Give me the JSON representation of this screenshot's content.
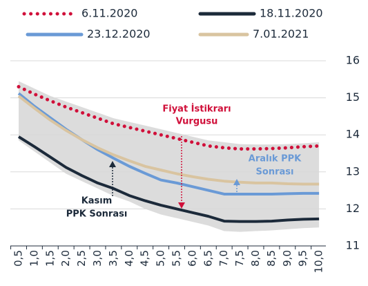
{
  "chart_data": {
    "type": "line",
    "categories": [
      "0,5",
      "1,0",
      "1,5",
      "2,0",
      "2,5",
      "3,0",
      "3,5",
      "4,0",
      "4,5",
      "5,0",
      "5,5",
      "6,0",
      "6,5",
      "7,0",
      "7,5",
      "8,0",
      "8,5",
      "9,0",
      "9,5",
      "10,0"
    ],
    "series": [
      {
        "name": "6.11.2020",
        "color": "#d0103a",
        "style": "dotted",
        "values": [
          15.3,
          15.1,
          14.92,
          14.75,
          14.6,
          14.45,
          14.3,
          14.2,
          14.1,
          14.0,
          13.9,
          13.8,
          13.7,
          13.65,
          13.62,
          13.62,
          13.63,
          13.65,
          13.68,
          13.7
        ]
      },
      {
        "name": "18.11.2020",
        "color": "#1c2a3a",
        "style": "solid",
        "values": [
          13.95,
          13.68,
          13.4,
          13.12,
          12.9,
          12.7,
          12.55,
          12.36,
          12.22,
          12.1,
          12.0,
          11.9,
          11.8,
          11.67,
          11.66,
          11.66,
          11.67,
          11.7,
          11.72,
          11.73
        ]
      },
      {
        "name": "23.12.2020",
        "color": "#6a9ad6",
        "style": "solid",
        "values": [
          15.12,
          14.77,
          14.46,
          14.15,
          13.87,
          13.6,
          13.37,
          13.15,
          12.96,
          12.78,
          12.7,
          12.6,
          12.5,
          12.4,
          12.4,
          12.4,
          12.4,
          12.41,
          12.42,
          12.42
        ]
      },
      {
        "name": "7.01.2021",
        "color": "#d9c4a0",
        "style": "solid",
        "values": [
          15.05,
          14.72,
          14.4,
          14.12,
          13.87,
          13.65,
          13.46,
          13.3,
          13.15,
          13.05,
          12.95,
          12.87,
          12.8,
          12.75,
          12.72,
          12.7,
          12.7,
          12.68,
          12.67,
          12.67
        ]
      }
    ],
    "band": {
      "color": "#dcdcdc",
      "upper": [
        15.45,
        15.25,
        15.05,
        14.9,
        14.75,
        14.6,
        14.45,
        14.35,
        14.25,
        14.15,
        14.05,
        13.95,
        13.85,
        13.8,
        13.75,
        13.74,
        13.74,
        13.75,
        13.77,
        13.8
      ],
      "lower": [
        13.85,
        13.55,
        13.25,
        12.95,
        12.75,
        12.55,
        12.35,
        12.2,
        12.0,
        11.85,
        11.75,
        11.65,
        11.55,
        11.4,
        11.38,
        11.4,
        11.42,
        11.45,
        11.48,
        11.5
      ]
    },
    "ylim": [
      11,
      16
    ],
    "yticks": [
      11,
      12,
      13,
      14,
      15,
      16
    ],
    "grid": true,
    "annotations": [
      {
        "text": "Fiyat İstikrarı",
        "color": "#d0103a"
      },
      {
        "text": "Vurgusu",
        "color": "#d0103a"
      },
      {
        "text": "Aralık PPK",
        "color": "#6a9ad6"
      },
      {
        "text": "Sonrası",
        "color": "#6a9ad6"
      },
      {
        "text": "Kasım",
        "color": "#1c2a3a"
      },
      {
        "text": "PPK Sonrası",
        "color": "#1c2a3a"
      }
    ]
  }
}
